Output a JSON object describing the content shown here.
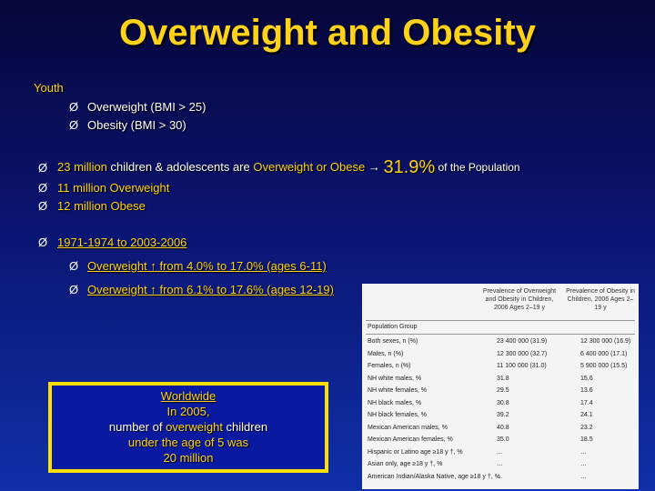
{
  "title": "Overweight and Obesity",
  "youth": {
    "label": "Youth",
    "items": [
      "Overweight (BMI > 25)",
      "Obesity (BMI > 30)"
    ]
  },
  "stats": {
    "line1_a": "23 million",
    "line1_b": " children & adolescents are ",
    "line1_c": "Overweight or Obese",
    "arrow": "→",
    "pct": "31.9%",
    "line1_d": " of the Population",
    "line2": "11 million Overweight",
    "line3": "12 million Obese"
  },
  "trend": {
    "period": "1971-1974 to 2003-2006",
    "items": [
      "Overweight ↑ from 4.0% to 17.0% (ages 6-11)",
      "Overweight ↑ from 6.1% to 17.6% (ages 12-19)"
    ]
  },
  "bullet_glyph": "Ø",
  "worldwide": {
    "heading": "Worldwide",
    "line1": "In 2005,",
    "line2a": "number of ",
    "line2b": "overweight",
    "line2c": " children",
    "line3": "under the age of 5 was",
    "line4": "20 million"
  },
  "table": {
    "headers": [
      "Population Group",
      "Prevalence of Overweight and Obesity in Children, 2006 Ages 2–19 y",
      "Prevalence of Obesity in Children, 2006 Ages 2–19 y"
    ],
    "rows": [
      [
        "Both sexes, n (%)",
        "23 400 000 (31.9)",
        "12 300 000 (16.9)"
      ],
      [
        "Males, n (%)",
        "12 300 000 (32.7)",
        "6 400 000 (17.1)"
      ],
      [
        "Females, n (%)",
        "11 100 000 (31.0)",
        "5 900 000 (15.5)"
      ],
      [
        "NH white males, %",
        "31.8",
        "15.6"
      ],
      [
        "NH white females, %",
        "29.5",
        "13.6"
      ],
      [
        "NH black males, %",
        "30.8",
        "17.4"
      ],
      [
        "NH black females, %",
        "39.2",
        "24.1"
      ],
      [
        "Mexican American males, %",
        "40.8",
        "23.2"
      ],
      [
        "Mexican American females, %",
        "35.0",
        "18.5"
      ],
      [
        "Hispanic or Latino age ≥18 y †, %",
        "…",
        "…"
      ],
      [
        "Asian only, age ≥18 y †, %",
        "…",
        "…"
      ],
      [
        "American Indian/Alaska Native, age ≥18 y †, %",
        "…",
        "…"
      ]
    ]
  }
}
